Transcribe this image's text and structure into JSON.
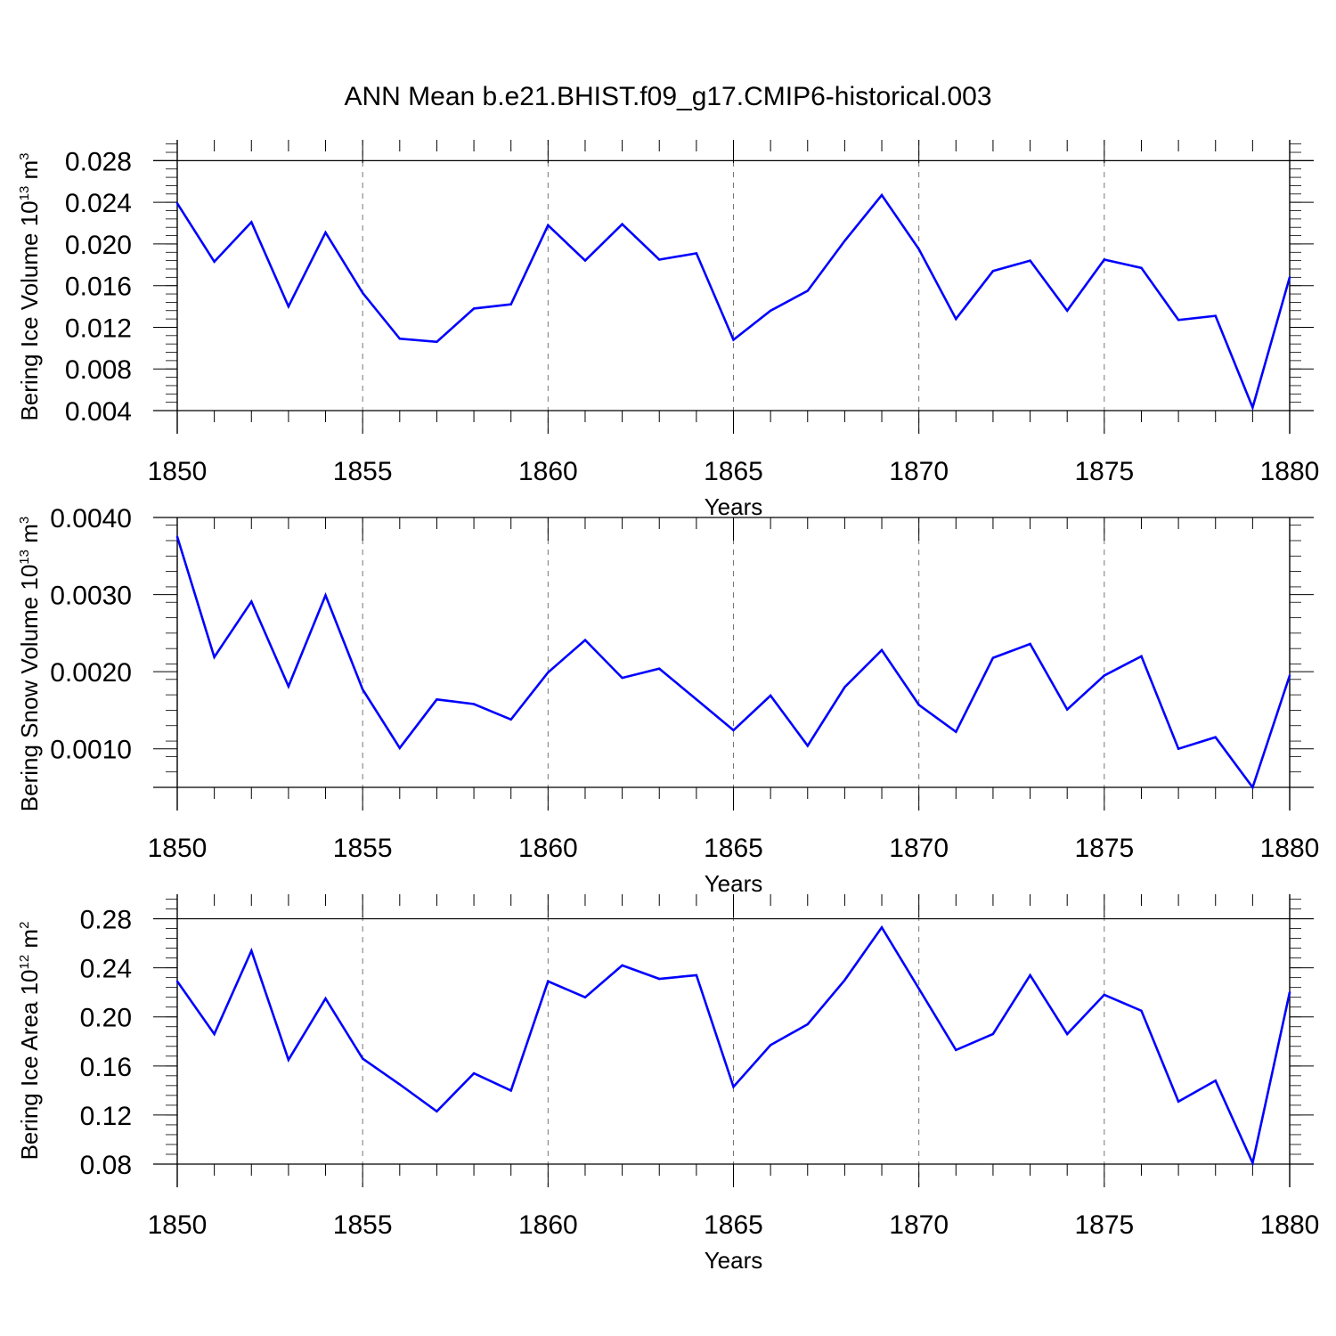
{
  "figure_title": "ANN Mean b.e21.BHIST.f09_g17.CMIP6-historical.003",
  "style": {
    "line_color": "#0000ff",
    "axis_color": "#000000",
    "grid_color": "#777777"
  },
  "chart_data": [
    {
      "type": "line",
      "name": "ice-volume",
      "ylabel_text": "Bering Ice Volume 10",
      "ylabel_exp": "13",
      "ylabel_unit": "m",
      "ylabel_unit_exp": "3",
      "xlabel": "Years",
      "xlim": [
        1850,
        1880
      ],
      "ylim": [
        0.004,
        0.03
      ],
      "x_major_ticks": [
        1850,
        1855,
        1860,
        1865,
        1870,
        1875,
        1880
      ],
      "x_tick_labels": [
        "1850",
        "1855",
        "1860",
        "1865",
        "1870",
        "1875",
        "1880"
      ],
      "y_major_ticks": [
        0.004,
        0.008,
        0.012,
        0.016,
        0.02,
        0.024,
        0.028
      ],
      "y_tick_labels": [
        "0.004",
        "0.008",
        "0.012",
        "0.016",
        "0.020",
        "0.024",
        "0.028"
      ],
      "y_minor_step": 0.0008,
      "x_gridlines": [
        1855,
        1860,
        1865,
        1870,
        1875
      ],
      "x": [
        1850,
        1851,
        1852,
        1853,
        1854,
        1855,
        1856,
        1857,
        1858,
        1859,
        1860,
        1861,
        1862,
        1863,
        1864,
        1865,
        1866,
        1867,
        1868,
        1869,
        1870,
        1871,
        1872,
        1873,
        1874,
        1875,
        1876,
        1877,
        1878,
        1879,
        1880
      ],
      "values": [
        0.0239,
        0.0183,
        0.0221,
        0.014,
        0.0211,
        0.0153,
        0.0109,
        0.0106,
        0.0138,
        0.0142,
        0.0218,
        0.0184,
        0.0219,
        0.0185,
        0.0191,
        0.0108,
        0.0136,
        0.0155,
        0.0203,
        0.0247,
        0.0195,
        0.0128,
        0.0174,
        0.0184,
        0.0136,
        0.0185,
        0.0177,
        0.0127,
        0.0131,
        0.0043,
        0.0168
      ]
    },
    {
      "type": "line",
      "name": "snow-volume",
      "ylabel_text": "Bering Snow Volume 10",
      "ylabel_exp": "13",
      "ylabel_unit": "m",
      "ylabel_unit_exp": "3",
      "xlabel": "Years",
      "xlim": [
        1850,
        1880
      ],
      "ylim": [
        0.0005,
        0.004
      ],
      "x_major_ticks": [
        1850,
        1855,
        1860,
        1865,
        1870,
        1875,
        1880
      ],
      "x_tick_labels": [
        "1850",
        "1855",
        "1860",
        "1865",
        "1870",
        "1875",
        "1880"
      ],
      "y_major_ticks": [
        0.001,
        0.002,
        0.003,
        0.004
      ],
      "y_tick_labels": [
        "0.0010",
        "0.0020",
        "0.0030",
        "0.0040"
      ],
      "y_minor_step": 0.0002,
      "x_gridlines": [
        1855,
        1860,
        1865,
        1870,
        1875
      ],
      "x": [
        1850,
        1851,
        1852,
        1853,
        1854,
        1855,
        1856,
        1857,
        1858,
        1859,
        1860,
        1861,
        1862,
        1863,
        1864,
        1865,
        1866,
        1867,
        1868,
        1869,
        1870,
        1871,
        1872,
        1873,
        1874,
        1875,
        1876,
        1877,
        1878,
        1879,
        1880
      ],
      "values": [
        0.00375,
        0.00219,
        0.00291,
        0.00181,
        0.00299,
        0.00177,
        0.00101,
        0.00164,
        0.00158,
        0.00138,
        0.00199,
        0.00241,
        0.00192,
        0.00204,
        0.00164,
        0.00124,
        0.00169,
        0.00104,
        0.0018,
        0.00228,
        0.00157,
        0.00122,
        0.00218,
        0.00236,
        0.00151,
        0.00195,
        0.0022,
        0.001,
        0.00115,
        0.0005,
        0.00195
      ]
    },
    {
      "type": "line",
      "name": "ice-area",
      "ylabel_text": "Bering Ice Area 10",
      "ylabel_exp": "12",
      "ylabel_unit": "m",
      "ylabel_unit_exp": "2",
      "xlabel": "Years",
      "xlim": [
        1850,
        1880
      ],
      "ylim": [
        0.08,
        0.3
      ],
      "x_major_ticks": [
        1850,
        1855,
        1860,
        1865,
        1870,
        1875,
        1880
      ],
      "x_tick_labels": [
        "1850",
        "1855",
        "1860",
        "1865",
        "1870",
        "1875",
        "1880"
      ],
      "y_major_ticks": [
        0.08,
        0.12,
        0.16,
        0.2,
        0.24,
        0.28
      ],
      "y_tick_labels": [
        "0.08",
        "0.12",
        "0.16",
        "0.20",
        "0.24",
        "0.28"
      ],
      "y_minor_step": 0.008,
      "x_gridlines": [
        1855,
        1860,
        1865,
        1870,
        1875
      ],
      "x": [
        1850,
        1851,
        1852,
        1853,
        1854,
        1855,
        1856,
        1857,
        1858,
        1859,
        1860,
        1861,
        1862,
        1863,
        1864,
        1865,
        1866,
        1867,
        1868,
        1869,
        1870,
        1871,
        1872,
        1873,
        1874,
        1875,
        1876,
        1877,
        1878,
        1879,
        1880
      ],
      "values": [
        0.229,
        0.186,
        0.254,
        0.165,
        0.215,
        0.166,
        0.145,
        0.123,
        0.154,
        0.14,
        0.229,
        0.216,
        0.242,
        0.231,
        0.234,
        0.143,
        0.177,
        0.194,
        0.23,
        0.273,
        0.223,
        0.173,
        0.186,
        0.234,
        0.186,
        0.218,
        0.205,
        0.131,
        0.148,
        0.081,
        0.22
      ]
    }
  ]
}
